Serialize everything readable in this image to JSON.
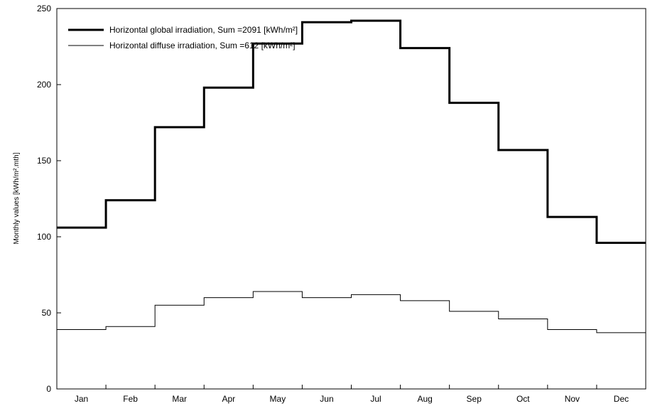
{
  "chart_data": {
    "type": "line",
    "step": true,
    "categories": [
      "Jan",
      "Feb",
      "Mar",
      "Apr",
      "May",
      "Jun",
      "Jul",
      "Aug",
      "Sep",
      "Oct",
      "Nov",
      "Dec"
    ],
    "series": [
      {
        "name": "Horizontal global irradiation,  Sum =2091 [kWh/m²]",
        "values": [
          106,
          124,
          172,
          198,
          227,
          241,
          242,
          224,
          188,
          157,
          113,
          96
        ],
        "color": "#000000",
        "weight": "thick"
      },
      {
        "name": "Horizontal diffuse irradiation,  Sum =612 [kWh/m²]",
        "values": [
          39,
          41,
          55,
          60,
          64,
          60,
          62,
          58,
          51,
          46,
          39,
          37
        ],
        "color": "#000000",
        "weight": "thin"
      }
    ],
    "ylabel": "Monthly values  [kWh/m².mth]",
    "xlabel": "",
    "ylim": [
      0,
      250
    ],
    "yticks": [
      0,
      50,
      100,
      150,
      200,
      250
    ],
    "grid": false,
    "legend_position": "top-left"
  }
}
